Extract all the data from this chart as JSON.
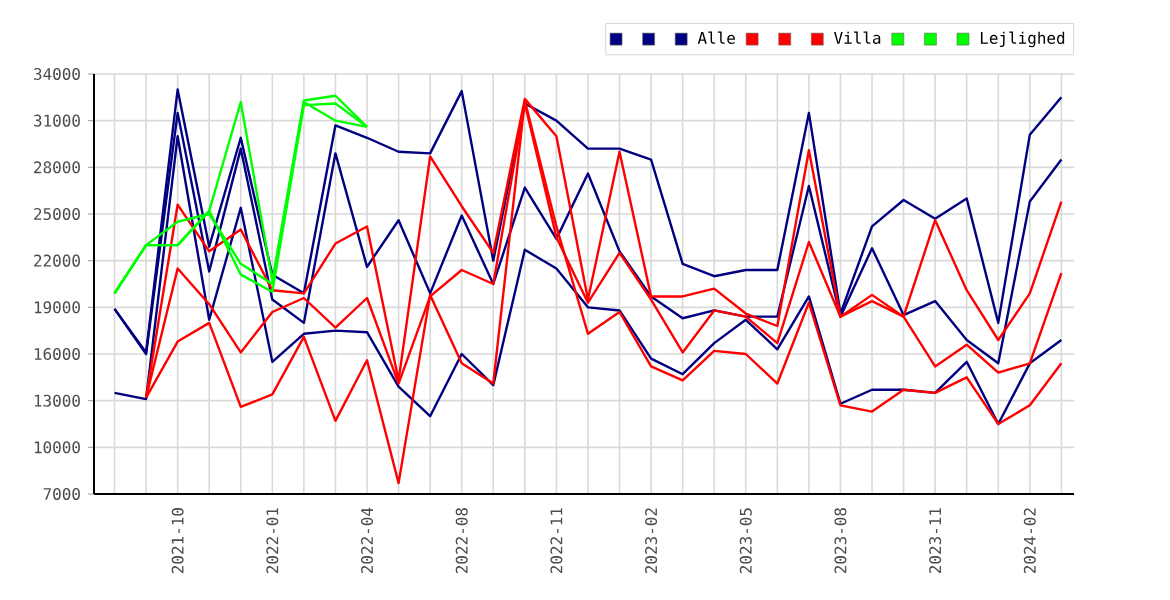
{
  "chart_data": {
    "type": "line",
    "categories": [
      null,
      null,
      "2021-10",
      null,
      null,
      "2022-01",
      null,
      null,
      "2022-04",
      null,
      null,
      "2022-08",
      null,
      null,
      "2022-11",
      null,
      null,
      "2023-02",
      null,
      null,
      "2023-05",
      null,
      null,
      "2023-08",
      null,
      null,
      "2023-11",
      null,
      null,
      "2024-02",
      null
    ],
    "series": [
      {
        "color": "#000080",
        "values": [
          18900,
          16100,
          33000,
          22900,
          29900,
          21100,
          19900,
          30700,
          29900,
          29000,
          28900,
          32900,
          22000,
          32100,
          31000,
          29200,
          29200,
          28500,
          21800,
          21000,
          21400,
          21400,
          31500,
          18600,
          24200,
          25900,
          24700,
          26000,
          18000,
          30100,
          32500
        ]
      },
      {
        "color": "#000080",
        "values": [
          18900,
          16000,
          31500,
          21300,
          29200,
          19500,
          18000,
          28900,
          21600,
          24600,
          19900,
          24900,
          20500,
          26700,
          23400,
          27600,
          22600,
          19700,
          18300,
          18800,
          18400,
          18400,
          26800,
          18400,
          22800,
          18500,
          19400,
          16900,
          15400,
          25800,
          28500
        ]
      },
      {
        "name": "Alle",
        "color": "#000080",
        "values": [
          13500,
          13100,
          30000,
          18200,
          25400,
          15500,
          17300,
          17500,
          17400,
          13900,
          12000,
          16000,
          14000,
          22700,
          21500,
          19000,
          18800,
          15700,
          14700,
          16700,
          18200,
          16300,
          19700,
          12800,
          13700,
          13700,
          13500,
          15500,
          11500,
          15400,
          16900
        ]
      },
      {
        "color": "#ff0000",
        "values": [
          null,
          13200,
          25600,
          22600,
          24000,
          20100,
          19900,
          23100,
          24200,
          14300,
          28700,
          25500,
          22500,
          32400,
          30000,
          19500,
          29000,
          19700,
          19700,
          20200,
          18600,
          17800,
          29100,
          18400,
          19800,
          18400,
          24600,
          20100,
          16900,
          19900,
          25800
        ]
      },
      {
        "color": "#ff0000",
        "values": [
          null,
          13200,
          21500,
          19200,
          16100,
          18700,
          19600,
          17700,
          19600,
          14100,
          19700,
          21400,
          20500,
          32100,
          23500,
          19300,
          22500,
          19500,
          16100,
          18800,
          18400,
          16700,
          23200,
          18400,
          19400,
          18400,
          15200,
          16600,
          14800,
          15400,
          21200
        ]
      },
      {
        "name": "Villa",
        "color": "#ff0000",
        "values": [
          null,
          13200,
          16800,
          18000,
          12600,
          13400,
          17100,
          11700,
          15600,
          7700,
          19800,
          15400,
          14100,
          32300,
          24200,
          17300,
          18700,
          15200,
          14300,
          16200,
          16000,
          14100,
          19300,
          12700,
          12300,
          13700,
          13500,
          14500,
          11500,
          12700,
          15400
        ]
      },
      {
        "color": "#00ff00",
        "values": [
          19900,
          23000,
          23000,
          25200,
          32200,
          20700,
          32300,
          32600,
          30600,
          null,
          null,
          null,
          null,
          null,
          null,
          null,
          null,
          null,
          null,
          null,
          null,
          null,
          null,
          null,
          null,
          null,
          null,
          null,
          null,
          null,
          null
        ]
      },
      {
        "color": "#00ff00",
        "values": [
          19900,
          23000,
          24500,
          25000,
          21800,
          20500,
          32200,
          31000,
          30600,
          null,
          null,
          null,
          null,
          null,
          null,
          null,
          null,
          null,
          null,
          null,
          null,
          null,
          null,
          null,
          null,
          null,
          null,
          null,
          null,
          null,
          null
        ]
      },
      {
        "name": "Lejlighed",
        "color": "#00ff00",
        "values": [
          19900,
          23000,
          23000,
          25200,
          21100,
          20000,
          32000,
          32100,
          30600,
          null,
          null,
          null,
          null,
          null,
          null,
          null,
          null,
          null,
          null,
          null,
          null,
          null,
          null,
          null,
          null,
          null,
          null,
          null,
          null,
          null,
          null
        ]
      }
    ],
    "ylim": [
      7000,
      34000
    ],
    "yticks": [
      7000,
      10000,
      13000,
      16000,
      19000,
      22000,
      25000,
      28000,
      31000,
      34000
    ],
    "grid": true,
    "legend": "top right"
  }
}
